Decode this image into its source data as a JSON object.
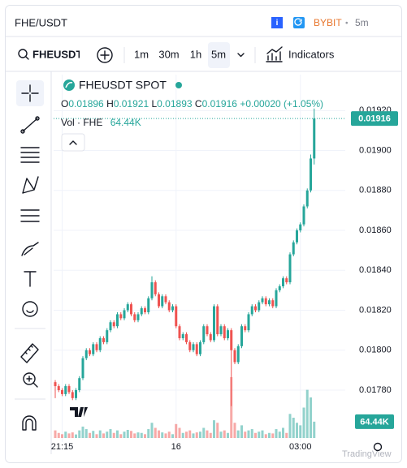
{
  "header": {
    "title": "FHE/USDT",
    "exchange": "BYBIT",
    "separator": "•",
    "interval": "5m"
  },
  "toolbar": {
    "symbol": "FHEUSDT",
    "intervals": [
      "1m",
      "30m",
      "1h",
      "5m"
    ],
    "indicators": "Indicators"
  },
  "watermark": "TradingView",
  "chart_data": {
    "type": "candlestick",
    "legend": {
      "symbol": "FHEUSDT SPOT",
      "ohlc_labels": [
        "O",
        "H",
        "L",
        "C"
      ],
      "change": "+0.00020 (+1.05%)",
      "volume_name": "Vol · FHE",
      "volume_value": "64.44K"
    },
    "up_color": "#26a69a",
    "down_color": "#ef5350",
    "categories": [
      null,
      null,
      "21:15",
      null,
      null,
      null,
      null,
      null,
      null,
      null,
      null,
      null,
      null,
      null,
      null,
      null,
      null,
      null,
      null,
      null,
      null,
      null,
      null,
      null,
      null,
      null,
      null,
      null,
      null,
      null,
      null,
      null,
      null,
      null,
      null,
      "16",
      null,
      null,
      null,
      null,
      null,
      null,
      null,
      null,
      null,
      null,
      null,
      null,
      null,
      null,
      null,
      null,
      null,
      null,
      null,
      null,
      null,
      null,
      null,
      null,
      null,
      null,
      null,
      null,
      null,
      null,
      null,
      null,
      null,
      null,
      null,
      "03:00",
      null,
      null,
      null,
      null
    ],
    "open": [
      0.01784,
      0.01782,
      0.0178,
      0.01778,
      0.01782,
      0.01779,
      0.01776,
      0.0178,
      0.01786,
      0.01796,
      0.018,
      0.01798,
      0.01803,
      0.018,
      0.01806,
      0.01804,
      0.0181,
      0.01814,
      0.01812,
      0.01818,
      0.01816,
      0.0182,
      0.01823,
      0.01818,
      0.01815,
      0.01818,
      0.01821,
      0.01819,
      0.01826,
      0.01834,
      0.01828,
      0.01822,
      0.01827,
      0.01824,
      0.0182,
      0.01822,
      0.01812,
      0.01806,
      0.01808,
      0.01804,
      0.018,
      0.01803,
      0.01798,
      0.01804,
      0.01812,
      0.01808,
      0.01805,
      0.01822,
      0.01808,
      0.01812,
      0.01806,
      0.0181,
      0.018,
      0.01794,
      0.01802,
      0.01812,
      0.0181,
      0.01818,
      0.01822,
      0.0182,
      0.01824,
      0.01826,
      0.01823,
      0.01825,
      0.01822,
      0.0183,
      0.01832,
      0.01836,
      0.01834,
      0.01848,
      0.01854,
      0.0186,
      0.01863,
      0.01872,
      0.0188,
      0.01896
    ],
    "high": [
      0.01785,
      0.01783,
      0.01781,
      0.01783,
      0.01783,
      0.0178,
      0.01781,
      0.01787,
      0.01797,
      0.01801,
      0.01801,
      0.01804,
      0.01804,
      0.01807,
      0.01807,
      0.01811,
      0.01815,
      0.01815,
      0.01819,
      0.01819,
      0.01821,
      0.01824,
      0.01824,
      0.01819,
      0.01819,
      0.01822,
      0.01822,
      0.01827,
      0.01837,
      0.01835,
      0.01829,
      0.01828,
      0.01828,
      0.01825,
      0.01823,
      0.01823,
      0.01813,
      0.01809,
      0.01809,
      0.01805,
      0.01804,
      0.01804,
      0.01805,
      0.01813,
      0.01813,
      0.01809,
      0.01823,
      0.01823,
      0.01813,
      0.01813,
      0.01811,
      0.01811,
      0.01801,
      0.01803,
      0.01813,
      0.01813,
      0.01819,
      0.01823,
      0.01823,
      0.01825,
      0.01827,
      0.01827,
      0.01826,
      0.01826,
      0.01831,
      0.01833,
      0.01837,
      0.01837,
      0.01849,
      0.01855,
      0.01861,
      0.01864,
      0.01873,
      0.01881,
      0.01898,
      0.01921
    ],
    "low": [
      0.01776,
      0.01779,
      0.01777,
      0.01777,
      0.01778,
      0.01775,
      0.01775,
      0.01779,
      0.01785,
      0.01795,
      0.01797,
      0.01797,
      0.01799,
      0.01799,
      0.01803,
      0.01803,
      0.01809,
      0.01811,
      0.01811,
      0.01815,
      0.01815,
      0.01819,
      0.01817,
      0.01814,
      0.01814,
      0.01817,
      0.01818,
      0.01818,
      0.01825,
      0.01827,
      0.01821,
      0.01821,
      0.01823,
      0.01819,
      0.01819,
      0.01811,
      0.01805,
      0.01805,
      0.01803,
      0.01799,
      0.01799,
      0.01797,
      0.01797,
      0.01803,
      0.01807,
      0.01804,
      0.01804,
      0.01807,
      0.01807,
      0.01805,
      0.01805,
      0.01772,
      0.01793,
      0.01793,
      0.01801,
      0.01809,
      0.01809,
      0.01817,
      0.01819,
      0.01819,
      0.01823,
      0.01822,
      0.01822,
      0.01821,
      0.01821,
      0.01829,
      0.01831,
      0.01833,
      0.01833,
      0.01847,
      0.01853,
      0.01859,
      0.01862,
      0.01871,
      0.01879,
      0.01893
    ],
    "close": [
      0.01782,
      0.0178,
      0.01778,
      0.01782,
      0.01779,
      0.01776,
      0.0178,
      0.01786,
      0.01796,
      0.018,
      0.01798,
      0.01803,
      0.018,
      0.01806,
      0.01804,
      0.0181,
      0.01814,
      0.01812,
      0.01818,
      0.01816,
      0.0182,
      0.01823,
      0.01818,
      0.01815,
      0.01818,
      0.01821,
      0.01819,
      0.01826,
      0.01834,
      0.01828,
      0.01822,
      0.01827,
      0.01824,
      0.0182,
      0.01822,
      0.01812,
      0.01806,
      0.01808,
      0.01804,
      0.018,
      0.01803,
      0.01798,
      0.01804,
      0.01812,
      0.01808,
      0.01805,
      0.01822,
      0.01808,
      0.01812,
      0.01806,
      0.0181,
      0.018,
      0.01794,
      0.01802,
      0.01812,
      0.0181,
      0.01818,
      0.01822,
      0.0182,
      0.01824,
      0.01826,
      0.01823,
      0.01825,
      0.01822,
      0.0183,
      0.01832,
      0.01836,
      0.01834,
      0.01848,
      0.01854,
      0.0186,
      0.01863,
      0.01872,
      0.0188,
      0.01896,
      0.01916
    ],
    "volume": [
      30000,
      20000,
      15000,
      25000,
      18000,
      22000,
      14000,
      30000,
      45000,
      35000,
      20000,
      28000,
      15000,
      30000,
      18000,
      25000,
      35000,
      20000,
      30000,
      15000,
      25000,
      32000,
      28000,
      18000,
      22000,
      20000,
      15000,
      35000,
      60000,
      40000,
      30000,
      22000,
      18000,
      25000,
      15000,
      55000,
      40000,
      20000,
      25000,
      30000,
      18000,
      22000,
      25000,
      40000,
      30000,
      20000,
      70000,
      60000,
      25000,
      30000,
      20000,
      240000,
      60000,
      30000,
      50000,
      25000,
      30000,
      35000,
      20000,
      25000,
      30000,
      15000,
      20000,
      18000,
      35000,
      25000,
      40000,
      20000,
      95000,
      80000,
      60000,
      50000,
      120000,
      190000,
      160000,
      64440
    ],
    "ylim": [
      0.01754,
      0.01938
    ],
    "yticks": [
      {
        "value": 0.0178,
        "label": "0.01780"
      },
      {
        "value": 0.018,
        "label": "0.01800"
      },
      {
        "value": 0.0182,
        "label": "0.01820"
      },
      {
        "value": 0.0184,
        "label": "0.01840"
      },
      {
        "value": 0.0186,
        "label": "0.01860"
      },
      {
        "value": 0.0188,
        "label": "0.01880"
      },
      {
        "value": 0.019,
        "label": "0.01900"
      },
      {
        "value": 0.0192,
        "label": "0.01920"
      }
    ],
    "grid": true
  }
}
